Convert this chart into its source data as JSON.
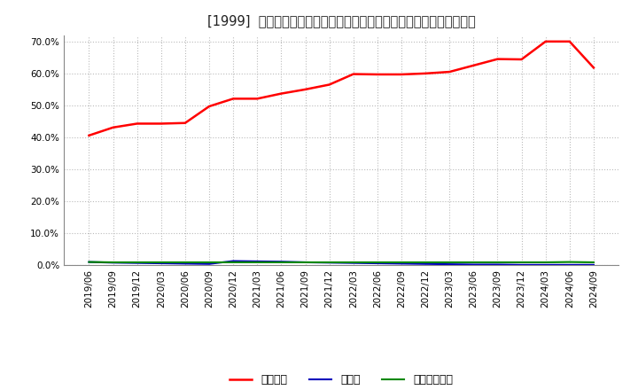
{
  "title": "[1999]  自己資本、のれん、繰延税金資産の総資産に対する比率の推移",
  "x_labels": [
    "2019/06",
    "2019/09",
    "2019/12",
    "2020/03",
    "2020/06",
    "2020/09",
    "2020/12",
    "2021/03",
    "2021/06",
    "2021/09",
    "2021/12",
    "2022/03",
    "2022/06",
    "2022/09",
    "2022/12",
    "2023/03",
    "2023/06",
    "2023/09",
    "2023/12",
    "2024/03",
    "2024/06",
    "2024/09"
  ],
  "jikoshihon": [
    0.406,
    0.431,
    0.443,
    0.443,
    0.445,
    0.497,
    0.521,
    0.521,
    0.537,
    0.55,
    0.565,
    0.598,
    0.597,
    0.597,
    0.6,
    0.605,
    0.625,
    0.645,
    0.644,
    0.7,
    0.7,
    0.618
  ],
  "noren": [
    0.01,
    0.008,
    0.007,
    0.006,
    0.005,
    0.004,
    0.013,
    0.012,
    0.011,
    0.009,
    0.008,
    0.007,
    0.006,
    0.005,
    0.004,
    0.003,
    0.002,
    0.002,
    0.001,
    0.001,
    0.001,
    0.001
  ],
  "kurinobezeikin": [
    0.01,
    0.009,
    0.009,
    0.009,
    0.009,
    0.009,
    0.009,
    0.009,
    0.009,
    0.009,
    0.009,
    0.009,
    0.009,
    0.009,
    0.009,
    0.009,
    0.009,
    0.009,
    0.009,
    0.009,
    0.01,
    0.009
  ],
  "jikoshihon_color": "#ff0000",
  "noren_color": "#0000bb",
  "kurinobezeikin_color": "#008800",
  "legend_label_jiko": "自己資本",
  "legend_label_noren": "のれん",
  "legend_label_kuri": "繰延税金資産",
  "ylim": [
    0.0,
    0.72
  ],
  "yticks": [
    0.0,
    0.1,
    0.2,
    0.3,
    0.4,
    0.5,
    0.6,
    0.7
  ],
  "background_color": "#ffffff",
  "plot_bg_color": "#ffffff",
  "grid_color": "#bbbbbb",
  "title_fontsize": 10.5,
  "tick_fontsize": 7.5,
  "legend_fontsize": 9
}
